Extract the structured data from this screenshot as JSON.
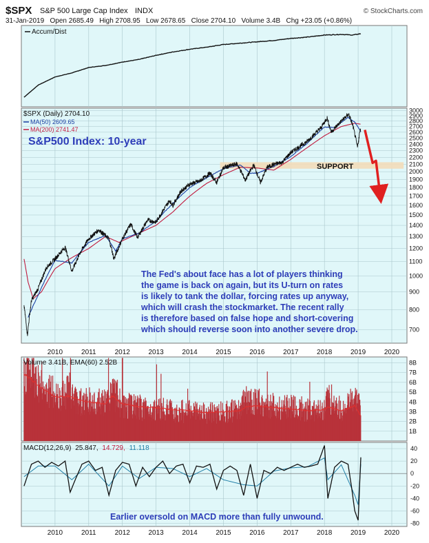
{
  "header": {
    "symbol": "$SPX",
    "name": "S&P 500 Large Cap Index",
    "exchange": "INDX",
    "copyright": "© StockCharts.com",
    "quote_line": "31-Jan-2019   Open 2685.49   High 2708.95   Low 2678.65   Close 2704.10   Volume 3.4B   Chg +23.05 (+0.86%)"
  },
  "colors": {
    "panel_bg": "#e0f7f9",
    "grid": "#a9c6cb",
    "price": "#111111",
    "ma50": "#1a3fa3",
    "ma200": "#c0183c",
    "volume_bar": "#b8323a",
    "support_band": "#f3dcb9",
    "arrow": "#e02020",
    "annotation": "#2d3db8",
    "signal": "#1f7ea6"
  },
  "chart_data": [
    {
      "type": "line",
      "panel": "accum_dist",
      "legend": [
        "Accum/Dist"
      ],
      "x": [
        2009.08,
        2009.5,
        2010.0,
        2010.5,
        2011.0,
        2011.5,
        2012.0,
        2012.5,
        2013.0,
        2013.5,
        2014.0,
        2014.5,
        2015.0,
        2015.5,
        2016.0,
        2016.5,
        2017.0,
        2017.5,
        2018.0,
        2018.5,
        2018.83,
        2019.08
      ],
      "values": [
        0,
        18,
        30,
        36,
        44,
        47,
        52,
        56,
        62,
        67,
        71,
        74,
        78,
        80,
        82,
        84,
        87,
        89,
        92,
        93,
        92,
        94
      ]
    },
    {
      "type": "line",
      "panel": "price",
      "title": "$SPX (Daily) 2704.10",
      "legend": [
        "MA(50) 2609.65",
        "MA(200) 2741.47"
      ],
      "scale": "log",
      "x_ticks": [
        "2010",
        "2011",
        "2012",
        "2013",
        "2014",
        "2015",
        "2016",
        "2017",
        "2018",
        "2019",
        "2020"
      ],
      "y_ticks": [
        3000,
        2900,
        2800,
        2700,
        2600,
        2500,
        2400,
        2300,
        2200,
        2100,
        2000,
        1900,
        1800,
        1700,
        1600,
        1500,
        1400,
        1300,
        1200,
        1100,
        1000,
        900,
        800,
        700
      ],
      "ylim": [
        640,
        3050
      ],
      "xlim": [
        2009.0,
        2020.45
      ],
      "series": [
        {
          "name": "$SPX",
          "x": [
            2009.08,
            2009.18,
            2009.3,
            2009.5,
            2009.75,
            2010.0,
            2010.3,
            2010.5,
            2010.75,
            2011.0,
            2011.3,
            2011.6,
            2011.75,
            2012.0,
            2012.25,
            2012.45,
            2012.75,
            2013.0,
            2013.4,
            2013.5,
            2013.75,
            2014.0,
            2014.3,
            2014.6,
            2014.8,
            2015.0,
            2015.4,
            2015.65,
            2015.9,
            2016.1,
            2016.3,
            2016.5,
            2016.75,
            2017.0,
            2017.5,
            2017.9,
            2018.08,
            2018.2,
            2018.5,
            2018.72,
            2018.85,
            2018.98,
            2019.08
          ],
          "values": [
            820,
            676,
            850,
            920,
            1060,
            1120,
            1210,
            1030,
            1170,
            1280,
            1360,
            1280,
            1120,
            1280,
            1410,
            1290,
            1450,
            1430,
            1650,
            1600,
            1760,
            1840,
            1880,
            1980,
            1860,
            2050,
            2110,
            1890,
            2090,
            1860,
            2060,
            2100,
            2130,
            2270,
            2450,
            2680,
            2860,
            2600,
            2800,
            2930,
            2700,
            2350,
            2704
          ]
        },
        {
          "name": "MA(50)",
          "x": [
            2009.2,
            2009.5,
            2010.0,
            2010.5,
            2011.0,
            2011.5,
            2011.8,
            2012.0,
            2012.5,
            2013.0,
            2013.5,
            2014.0,
            2014.5,
            2015.0,
            2015.5,
            2015.8,
            2016.0,
            2016.5,
            2017.0,
            2017.5,
            2018.0,
            2018.3,
            2018.7,
            2018.9,
            2019.08
          ],
          "values": [
            760,
            880,
            1110,
            1090,
            1250,
            1310,
            1180,
            1280,
            1330,
            1440,
            1620,
            1800,
            1920,
            2040,
            2090,
            1980,
            1980,
            2070,
            2210,
            2420,
            2690,
            2680,
            2870,
            2780,
            2610
          ]
        },
        {
          "name": "MA(200)",
          "x": [
            2009.08,
            2009.2,
            2009.35,
            2009.6,
            2010.0,
            2010.5,
            2011.0,
            2011.5,
            2011.9,
            2012.5,
            2013.0,
            2013.5,
            2014.0,
            2014.5,
            2015.0,
            2015.5,
            2016.0,
            2016.5,
            2017.0,
            2017.5,
            2018.0,
            2018.5,
            2018.9,
            2019.08
          ],
          "values": [
            1120,
            960,
            860,
            900,
            1050,
            1130,
            1200,
            1300,
            1250,
            1330,
            1400,
            1530,
            1700,
            1850,
            1960,
            2060,
            2050,
            2020,
            2170,
            2350,
            2540,
            2700,
            2760,
            2742
          ]
        }
      ],
      "support_band": [
        2040,
        2130
      ],
      "annotations": [
        "S&P500 Index: 10-year",
        "SUPPORT",
        "The Fed's about face has a lot of players thinking",
        "the game is back on again, but its U-turn on rates",
        "is likely to tank the dollar, forcing rates up anyway,",
        "which will crash the stockmarket. The recent rally",
        "is therefore based on false hope and short-covering",
        "which should reverse soon into another severe drop."
      ],
      "projected_path": {
        "x": [
          2019.2,
          2019.43,
          2019.53,
          2019.65
        ],
        "values": [
          2640,
          2120,
          2150,
          1720
        ]
      }
    },
    {
      "type": "bar",
      "panel": "volume",
      "title": "Volume 3.41B, EMA(60) 2.52B",
      "y_ticks": [
        8,
        7,
        6,
        5,
        4,
        3,
        2,
        1
      ],
      "y_tick_labels": [
        "8B",
        "7B",
        "6B",
        "5B",
        "4B",
        "3B",
        "2B",
        "1B"
      ],
      "ylim": [
        0,
        8.6
      ],
      "unit": "B",
      "x": [
        2009.08,
        2009.5,
        2010.0,
        2010.4,
        2010.6,
        2011.0,
        2011.5,
        2011.7,
        2012.0,
        2012.5,
        2013.0,
        2013.5,
        2014.0,
        2014.5,
        2015.0,
        2015.5,
        2015.65,
        2016.0,
        2016.5,
        2017.0,
        2017.5,
        2018.0,
        2018.1,
        2018.5,
        2018.9,
        2019.08
      ],
      "values": [
        7.6,
        6.2,
        4.6,
        5.4,
        4.2,
        4.0,
        3.8,
        5.4,
        3.6,
        3.4,
        3.3,
        3.1,
        3.0,
        2.8,
        3.0,
        3.1,
        4.4,
        3.9,
        3.5,
        3.4,
        3.2,
        3.3,
        4.6,
        3.1,
        4.2,
        3.4
      ],
      "ema": [
        6.9,
        5.7,
        4.5,
        4.6,
        4.3,
        4.0,
        3.8,
        4.6,
        3.8,
        3.5,
        3.4,
        3.2,
        3.1,
        2.9,
        3.0,
        3.1,
        3.5,
        3.6,
        3.4,
        3.3,
        3.1,
        3.2,
        3.5,
        3.1,
        3.6,
        2.52
      ]
    },
    {
      "type": "line",
      "panel": "macd",
      "title": "MACD(12,26,9) 25.847, 14.729, 11.118",
      "title_parts": [
        "MACD(12,26,9)",
        "25.847,",
        "14.729,",
        "11.118"
      ],
      "y_ticks": [
        40,
        20,
        0,
        -20,
        -40,
        -60,
        -80
      ],
      "ylim": [
        -85,
        50
      ],
      "x_ticks": [
        "2010",
        "2011",
        "2012",
        "2013",
        "2014",
        "2015",
        "2016",
        "2017",
        "2018",
        "2019",
        "2020"
      ],
      "series": [
        {
          "name": "MACD",
          "x": [
            2009.08,
            2009.3,
            2009.5,
            2009.7,
            2009.9,
            2010.1,
            2010.3,
            2010.45,
            2010.6,
            2010.8,
            2011.0,
            2011.2,
            2011.4,
            2011.6,
            2011.8,
            2012.0,
            2012.2,
            2012.4,
            2012.6,
            2012.8,
            2013.0,
            2013.2,
            2013.4,
            2013.6,
            2013.8,
            2014.0,
            2014.2,
            2014.4,
            2014.6,
            2014.8,
            2015.0,
            2015.2,
            2015.4,
            2015.6,
            2015.8,
            2016.0,
            2016.2,
            2016.4,
            2016.6,
            2016.8,
            2017.0,
            2017.2,
            2017.4,
            2017.6,
            2017.8,
            2018.0,
            2018.1,
            2018.3,
            2018.5,
            2018.7,
            2018.8,
            2018.9,
            2019.0,
            2019.08
          ],
          "values": [
            -20,
            15,
            20,
            10,
            18,
            12,
            20,
            -30,
            -10,
            15,
            20,
            5,
            10,
            -35,
            5,
            18,
            15,
            -20,
            10,
            -5,
            10,
            20,
            0,
            12,
            15,
            -15,
            12,
            10,
            15,
            -25,
            5,
            12,
            5,
            -35,
            15,
            -40,
            5,
            0,
            10,
            5,
            10,
            15,
            10,
            12,
            15,
            45,
            -40,
            10,
            20,
            15,
            -20,
            -60,
            -75,
            26
          ]
        },
        {
          "name": "Signal",
          "x": [
            2009.08,
            2009.5,
            2010.0,
            2010.5,
            2011.0,
            2011.6,
            2012.0,
            2012.5,
            2013.0,
            2013.5,
            2014.0,
            2014.5,
            2015.0,
            2015.6,
            2016.0,
            2016.5,
            2017.0,
            2017.5,
            2018.0,
            2018.1,
            2018.5,
            2018.9,
            2019.0,
            2019.08
          ],
          "values": [
            -5,
            12,
            12,
            -10,
            15,
            -20,
            12,
            -8,
            10,
            8,
            -5,
            8,
            -10,
            -18,
            -20,
            4,
            9,
            11,
            25,
            -10,
            14,
            -35,
            -50,
            15
          ]
        }
      ],
      "annotation": "Earlier oversold on MACD more than fully unwound."
    }
  ]
}
